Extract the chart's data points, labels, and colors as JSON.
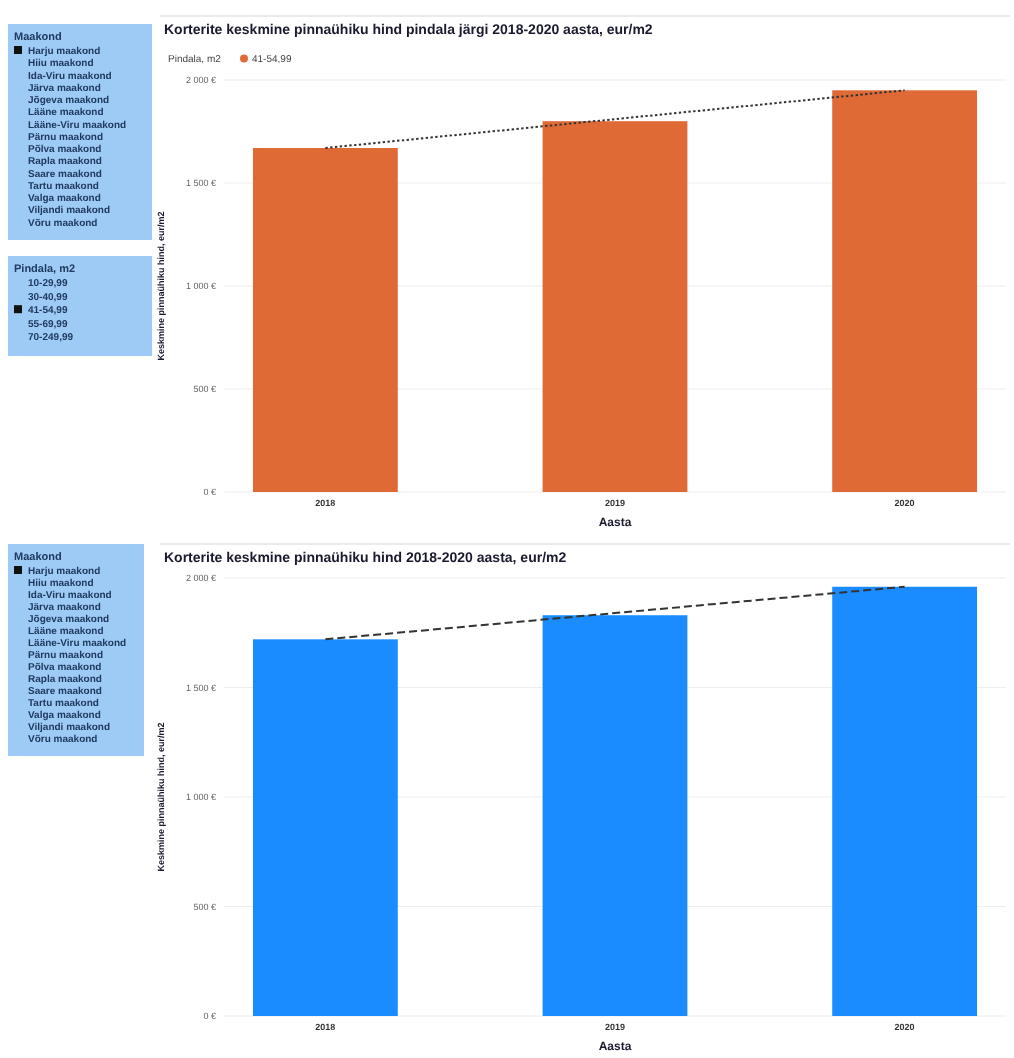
{
  "chart_data": [
    {
      "type": "other",
      "title": "Maakond",
      "categories": [
        "Harju maakond",
        "Hiiu maakond",
        "Ida-Viru maakond",
        "Järva maakond",
        "Jõgeva maakond",
        "Lääne maakond",
        "Lääne-Viru maakond",
        "Pärnu maakond",
        "Põlva maakond",
        "Rapla maakond",
        "Saare maakond",
        "Tartu maakond",
        "Valga maakond",
        "Viljandi maakond",
        "Võru maakond"
      ],
      "colors": [
        "#111111",
        null,
        null,
        null,
        null,
        null,
        null,
        null,
        null,
        null,
        null,
        null,
        null,
        null,
        null
      ]
    },
    {
      "type": "other",
      "title": "Pindala, m2",
      "categories": [
        "10-29,99",
        "30-40,99",
        "41-54,99",
        "55-69,99",
        "70-249,99"
      ],
      "colors": [
        null,
        null,
        "#111111",
        null,
        null
      ]
    },
    {
      "type": "bar",
      "title": "Korterite keskmine pinnaühiku hind pindala järgi 2018-2020 aasta, eur/m2",
      "xlabel": "Aasta",
      "ylabel": "Keskmine pinnaühiku hind, eur/m2",
      "legend_title": "Pindala, m2",
      "legend": "top left",
      "grid": "y",
      "categories": [
        "2018",
        "2019",
        "2020"
      ],
      "ylim": [
        0,
        2000
      ],
      "yticks": [
        {
          "value": 0,
          "label": "0 €"
        },
        {
          "value": 500,
          "label": "500 €"
        },
        {
          "value": 1000,
          "label": "1 000 €"
        },
        {
          "value": 1500,
          "label": "1 500 €"
        },
        {
          "value": 2000,
          "label": "2 000 €"
        }
      ],
      "series": [
        {
          "name": "41-54,99",
          "type": "bar",
          "color": "#e06a35",
          "values": [
            1670,
            1800,
            1950
          ]
        },
        {
          "type": "line",
          "color": "#333333",
          "line_style": "dotted",
          "values": [
            1670,
            1810,
            1950
          ]
        }
      ]
    },
    {
      "type": "other",
      "title": "Maakond",
      "categories": [
        "Harju maakond",
        "Hiiu maakond",
        "Ida-Viru maakond",
        "Järva maakond",
        "Jõgeva maakond",
        "Lääne maakond",
        "Lääne-Viru maakond",
        "Pärnu maakond",
        "Põlva maakond",
        "Rapla maakond",
        "Saare maakond",
        "Tartu maakond",
        "Valga maakond",
        "Viljandi maakond",
        "Võru maakond"
      ],
      "colors": [
        "#111111",
        null,
        null,
        null,
        null,
        null,
        null,
        null,
        null,
        null,
        null,
        null,
        null,
        null,
        null
      ]
    },
    {
      "type": "bar",
      "title": "Korterite keskmine pinnaühiku hind 2018-2020 aasta, eur/m2",
      "xlabel": "Aasta",
      "ylabel": "Keskmine pinnaühiku hind, eur/m2",
      "grid": "y",
      "categories": [
        "2018",
        "2019",
        "2020"
      ],
      "ylim": [
        0,
        2000
      ],
      "yticks": [
        {
          "value": 0,
          "label": "0 €"
        },
        {
          "value": 500,
          "label": "500 €"
        },
        {
          "value": 1000,
          "label": "1 000 €"
        },
        {
          "value": 1500,
          "label": "1 500 €"
        },
        {
          "value": 2000,
          "label": "2 000 €"
        }
      ],
      "series": [
        {
          "type": "bar",
          "color": "#1a8cff",
          "values": [
            1720,
            1830,
            1960
          ]
        },
        {
          "type": "line",
          "color": "#333333",
          "line_style": "dashed",
          "values": [
            1720,
            1840,
            1960
          ]
        }
      ]
    }
  ]
}
